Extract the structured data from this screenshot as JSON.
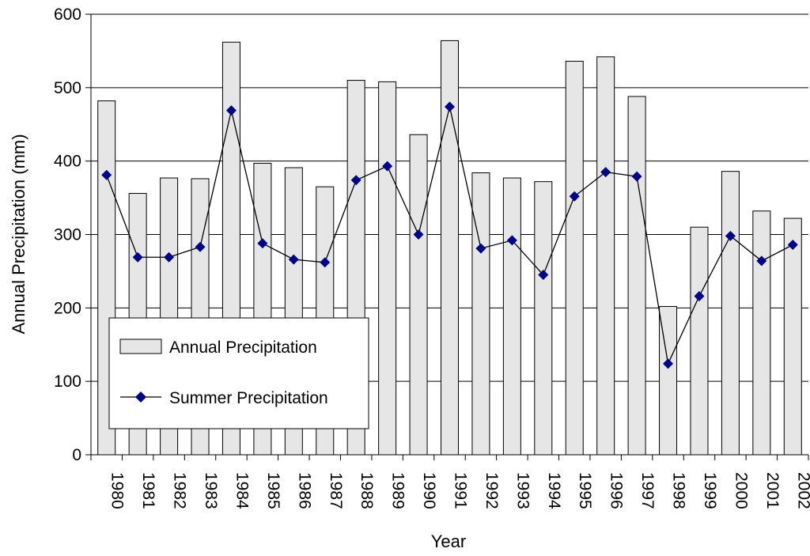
{
  "chart_data": {
    "type": "bar",
    "title": "",
    "xlabel": "Year",
    "ylabel": "Annual Precipitation (mm)",
    "ylim": [
      0,
      600
    ],
    "yticks": [
      0,
      100,
      200,
      300,
      400,
      500,
      600
    ],
    "grid": "horizontal major gridlines",
    "legend_placement": "lower-left",
    "categories": [
      "1980",
      "1981",
      "1982",
      "1983",
      "1984",
      "1985",
      "1986",
      "1987",
      "1988",
      "1989",
      "1990",
      "1991",
      "1992",
      "1993",
      "1994",
      "1995",
      "1996",
      "1997",
      "1998",
      "1999",
      "2000",
      "2001",
      "2002"
    ],
    "series": [
      {
        "name": "Annual Precipitation",
        "type": "bar",
        "color": "#e6e6e6",
        "values": [
          482,
          356,
          377,
          376,
          562,
          397,
          391,
          365,
          510,
          508,
          436,
          564,
          384,
          377,
          372,
          536,
          542,
          488,
          202,
          310,
          386,
          332,
          322
        ]
      },
      {
        "name": "Summer Precipitation",
        "type": "line",
        "marker": "diamond",
        "color": "#00008b",
        "values": [
          381,
          269,
          269,
          283,
          469,
          288,
          266,
          262,
          374,
          393,
          300,
          474,
          281,
          292,
          245,
          352,
          385,
          379,
          124,
          216,
          298,
          264,
          286
        ]
      }
    ]
  }
}
